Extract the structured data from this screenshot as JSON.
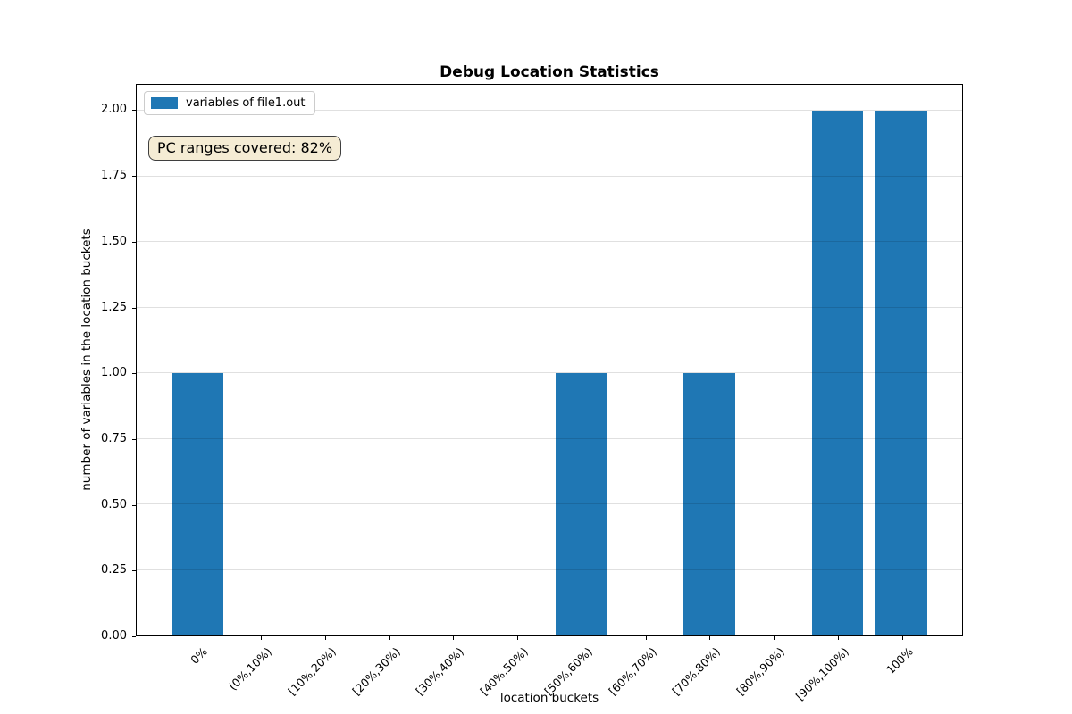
{
  "title": "Debug Location Statistics",
  "legend": {
    "label": "variables of file1.out",
    "swatch_color": "#1f77b4"
  },
  "annotation": {
    "text": "PC ranges covered: 82%",
    "bg_color": "#f5ecd4",
    "border_color": "#3f3f3f"
  },
  "chart_data": {
    "type": "bar",
    "title": "Debug Location Statistics",
    "xlabel": "location buckets",
    "ylabel": "number of variables in the location buckets",
    "categories": [
      "0%",
      "(0%,10%)",
      "[10%,20%)",
      "[20%,30%)",
      "[30%,40%)",
      "[40%,50%)",
      "[50%,60%)",
      "[60%,70%)",
      "[70%,80%)",
      "[80%,90%)",
      "[90%,100%)",
      "100%"
    ],
    "series": [
      {
        "name": "variables of file1.out",
        "values": [
          1,
          0,
          0,
          0,
          0,
          0,
          1,
          0,
          1,
          0,
          2,
          2
        ]
      }
    ],
    "bar_color": "#1f77b4",
    "ylim": [
      0,
      2.1
    ],
    "ytick_values": [
      0,
      0.25,
      0.5,
      0.75,
      1,
      1.25,
      1.5,
      1.75,
      2
    ],
    "ytick_labels": [
      "0.00",
      "0.25",
      "0.50",
      "0.75",
      "1.00",
      "1.25",
      "1.50",
      "1.75",
      "2.00"
    ],
    "grid": "horizontal",
    "grid_color": "rgba(0,0,0,0.12)",
    "legend_position": "upper-left",
    "xtick_rotation_deg": 45
  }
}
